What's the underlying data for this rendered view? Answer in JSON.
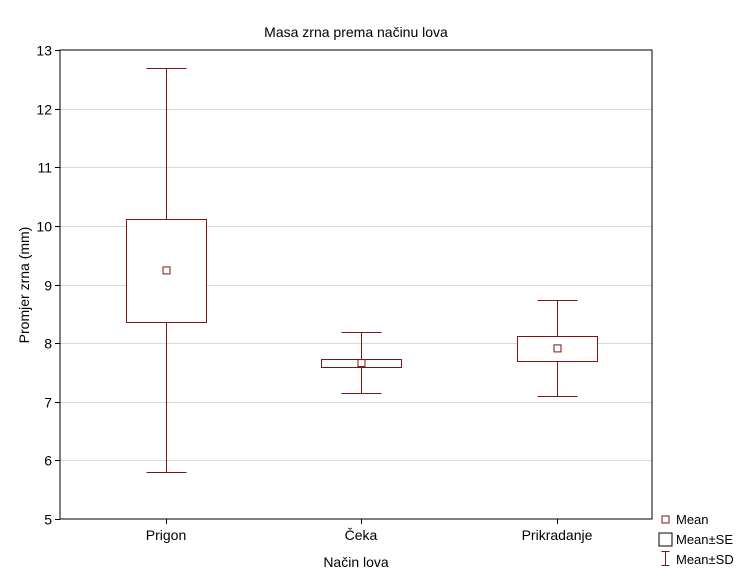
{
  "chart_data": {
    "type": "box",
    "title": "Masa zrna prema načinu lova",
    "xlabel": "Način lova",
    "ylabel": "Promjer zrna (mm)",
    "categories": [
      "Prigon",
      "Čeka",
      "Prikradanje"
    ],
    "ylim": [
      5,
      13
    ],
    "yticks": [
      5,
      6,
      7,
      8,
      9,
      10,
      11,
      12,
      13
    ],
    "grid": true,
    "legend_position": "bottom-right",
    "legend": [
      {
        "label": "Mean",
        "marker": "small-square"
      },
      {
        "label": "Mean±SE",
        "marker": "box"
      },
      {
        "label": "Mean±SD",
        "marker": "whisker"
      }
    ],
    "boxes": [
      {
        "category": "Prigon",
        "mean": 9.24,
        "se_low": 8.36,
        "se_high": 10.12,
        "sd_low": 5.8,
        "sd_high": 12.69
      },
      {
        "category": "Čeka",
        "mean": 7.66,
        "se_low": 7.6,
        "se_high": 7.73,
        "sd_low": 7.15,
        "sd_high": 8.19
      },
      {
        "category": "Prikradanje",
        "mean": 7.91,
        "se_low": 7.7,
        "se_high": 8.13,
        "sd_low": 7.1,
        "sd_high": 8.73
      }
    ]
  },
  "colors": {
    "series": "#7b1518",
    "grid": "#d9d9d9",
    "frame": "#000000",
    "text": "#000000"
  }
}
